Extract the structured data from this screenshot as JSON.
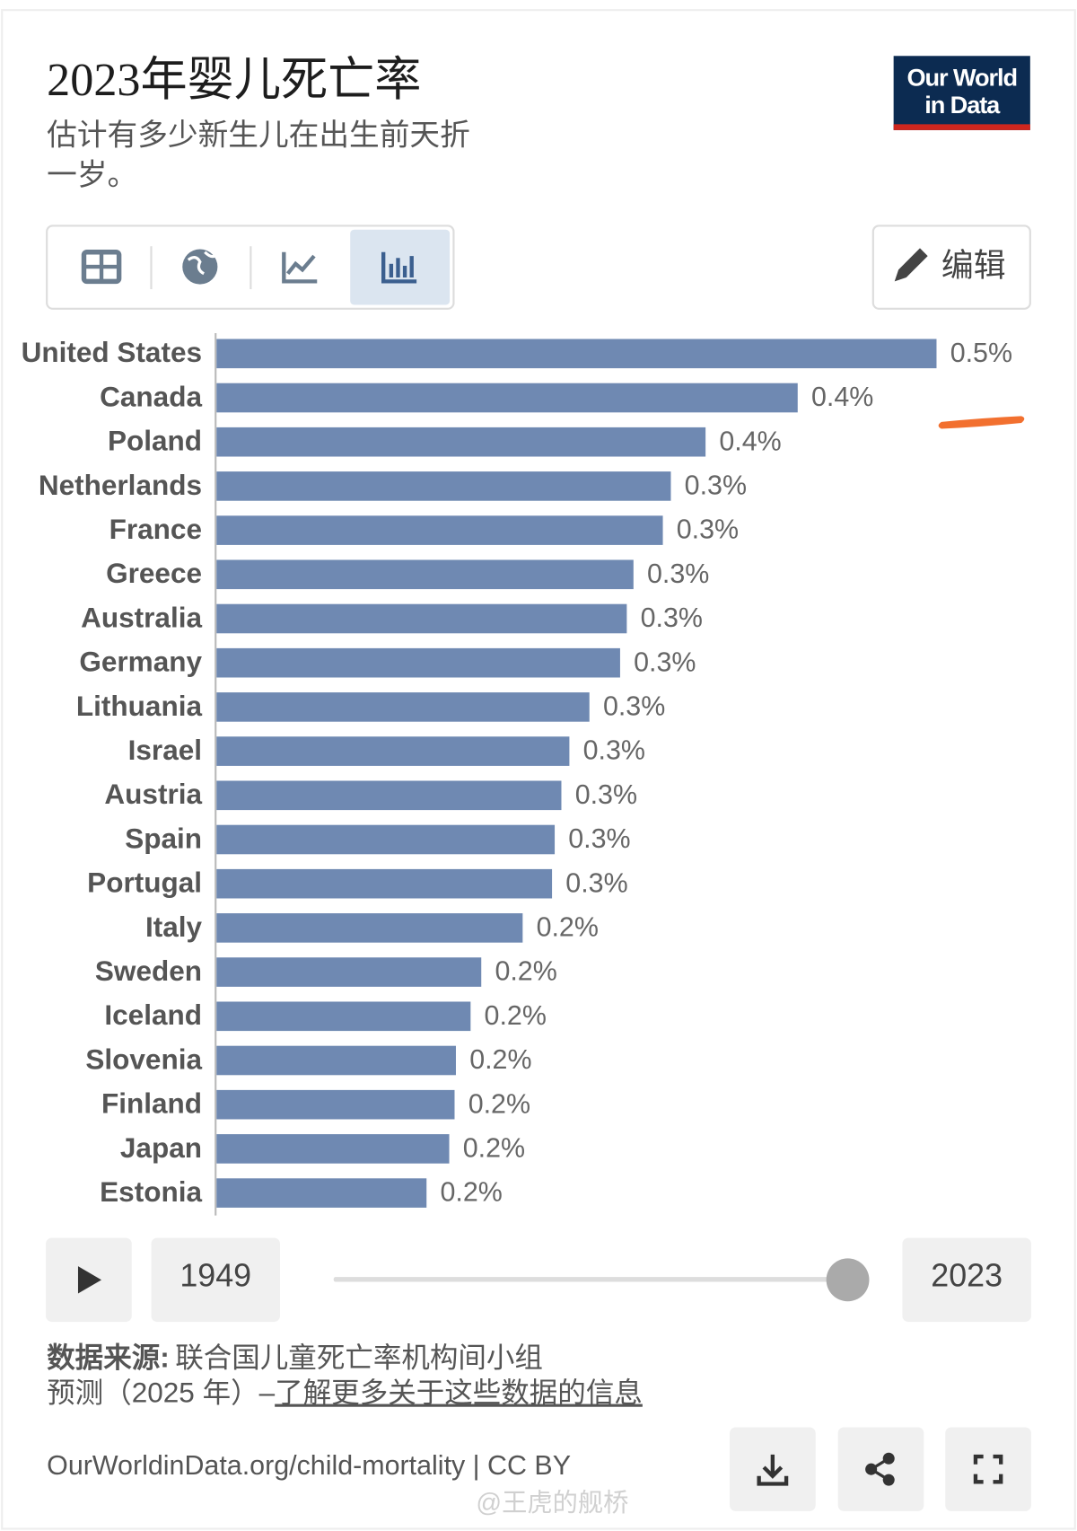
{
  "header": {
    "title": "2023年婴儿死亡率",
    "subtitle": [
      "估计有多少新生儿在出生前天折",
      "一岁。"
    ]
  },
  "logo": [
    "Our World",
    "in Data"
  ],
  "edit_button": "编辑",
  "chart_data": {
    "type": "bar",
    "orientation": "horizontal",
    "categories": [
      "United States",
      "Canada",
      "Poland",
      "Netherlands",
      "France",
      "Greece",
      "Australia",
      "Germany",
      "Lithuania",
      "Israel",
      "Austria",
      "Spain",
      "Portugal",
      "Italy",
      "Sweden",
      "Iceland",
      "Slovenia",
      "Finland",
      "Japan",
      "Estonia"
    ],
    "values": [
      0.54,
      0.436,
      0.367,
      0.341,
      0.335,
      0.313,
      0.308,
      0.303,
      0.28,
      0.265,
      0.259,
      0.254,
      0.252,
      0.23,
      0.199,
      0.191,
      0.18,
      0.179,
      0.175,
      0.158
    ],
    "value_labels": [
      "0.5%",
      "0.4%",
      "0.4%",
      "0.3%",
      "0.3%",
      "0.3%",
      "0.3%",
      "0.3%",
      "0.3%",
      "0.3%",
      "0.3%",
      "0.3%",
      "0.3%",
      "0.2%",
      "0.2%",
      "0.2%",
      "0.2%",
      "0.2%",
      "0.2%",
      "0.2%"
    ],
    "color": "#6f89b2"
  },
  "timeline": {
    "start": 1949,
    "end": 2023
  },
  "source": {
    "label": "数据来源:",
    "text": "联合国儿童死亡率机构间小组",
    "line2": "预测（2025 年）–",
    "link": "了解更多关于这些数据的信息"
  },
  "footer": {
    "url": "OurWorldinData.org/child-mortality | CC BY"
  },
  "watermark": "@王虎的舰桥"
}
